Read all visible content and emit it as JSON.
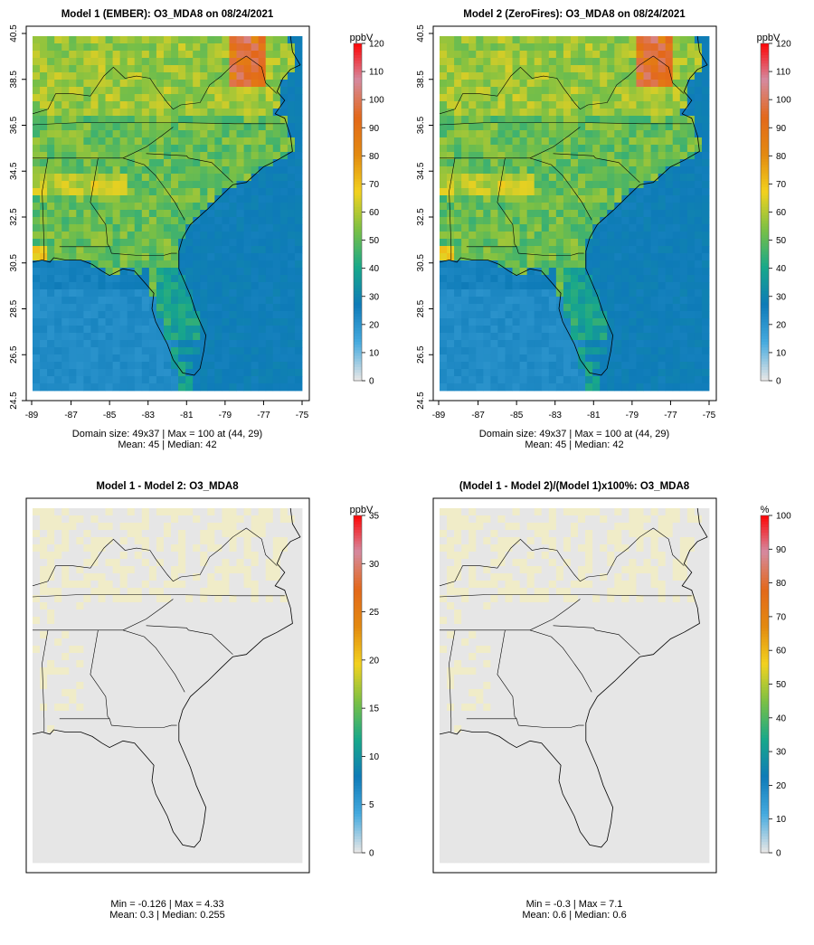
{
  "chart_data": [
    {
      "type": "heatmap",
      "title": "Model 1 (EMBER): O3_MDA8 on 08/24/2021",
      "unit": "ppbV",
      "x_ticks": [
        "-89",
        "-87",
        "-85",
        "-83",
        "-81",
        "-79",
        "-77",
        "-75"
      ],
      "y_ticks": [
        "24.5",
        "26.5",
        "28.5",
        "30.5",
        "32.5",
        "34.5",
        "36.5",
        "38.5",
        "40.5"
      ],
      "xlim": [
        -89,
        -75
      ],
      "ylim": [
        24.5,
        40.5
      ],
      "colorbar": {
        "ticks": [
          "0",
          "10",
          "20",
          "30",
          "40",
          "50",
          "60",
          "70",
          "80",
          "90",
          "100",
          "110",
          "120"
        ],
        "min": 0,
        "max": 120
      },
      "stats_line1": "Domain size: 49x37 | Max = 100 at (44, 29)",
      "stats_line2": "Mean: 45 |  Median: 42",
      "field": "ozone",
      "grid": false
    },
    {
      "type": "heatmap",
      "title": "Model 2 (ZeroFires): O3_MDA8 on 08/24/2021",
      "unit": "ppbV",
      "x_ticks": [
        "-89",
        "-87",
        "-85",
        "-83",
        "-81",
        "-79",
        "-77",
        "-75"
      ],
      "y_ticks": [
        "24.5",
        "26.5",
        "28.5",
        "30.5",
        "32.5",
        "34.5",
        "36.5",
        "38.5",
        "40.5"
      ],
      "xlim": [
        -89,
        -75
      ],
      "ylim": [
        24.5,
        40.5
      ],
      "colorbar": {
        "ticks": [
          "0",
          "10",
          "20",
          "30",
          "40",
          "50",
          "60",
          "70",
          "80",
          "90",
          "100",
          "110",
          "120"
        ],
        "min": 0,
        "max": 120
      },
      "stats_line1": "Domain size: 49x37 | Max = 100 at (44, 29)",
      "stats_line2": "Mean: 45 |  Median: 42",
      "field": "ozone",
      "grid": false
    },
    {
      "type": "heatmap",
      "title": "Model 1 - Model 2: O3_MDA8",
      "unit": "ppbV",
      "x_ticks": [],
      "y_ticks": [],
      "xlim": [
        -89,
        -75
      ],
      "ylim": [
        24.5,
        40.5
      ],
      "colorbar": {
        "ticks": [
          "0",
          "5",
          "10",
          "15",
          "20",
          "25",
          "30",
          "35"
        ],
        "min": 0,
        "max": 35
      },
      "stats_line1": "Min = -0.126 | Max = 4.33",
      "stats_line2": "Mean: 0.3 |  Median: 0.255",
      "field": "difference",
      "grid": false
    },
    {
      "type": "heatmap",
      "title": "(Model 1 - Model 2)/(Model 1)x100%: O3_MDA8",
      "unit": "%",
      "x_ticks": [],
      "y_ticks": [],
      "xlim": [
        -89,
        -75
      ],
      "ylim": [
        24.5,
        40.5
      ],
      "colorbar": {
        "ticks": [
          "0",
          "10",
          "20",
          "30",
          "40",
          "50",
          "60",
          "70",
          "80",
          "90",
          "100"
        ],
        "min": 0,
        "max": 100
      },
      "stats_line1": "Min = -0.3 | Max = 7.1",
      "stats_line2": "Mean: 0.6 |  Median: 0.6",
      "field": "percent",
      "grid": false
    }
  ],
  "colors": {
    "colorbar_stops": [
      "#e6e6e6",
      "#46aadf",
      "#0e7bb8",
      "#18a88a",
      "#7ac045",
      "#f2d21e",
      "#e38a10",
      "#e3681a",
      "#d58aa0",
      "#ff0000"
    ],
    "ocean": "#2f8fc8",
    "no_data": "#e6e6e6",
    "boundary": "#000000"
  }
}
